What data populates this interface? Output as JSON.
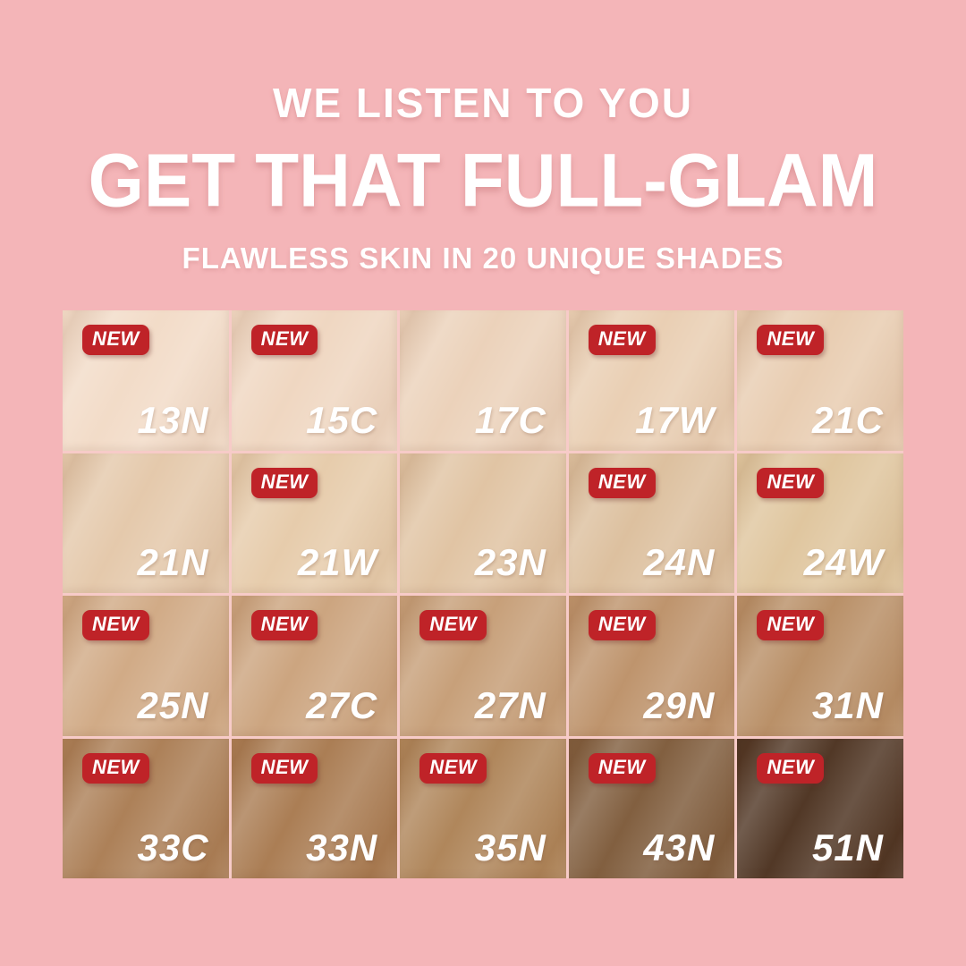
{
  "page": {
    "background_color": "#f4b5b8"
  },
  "header": {
    "line1": "WE LISTEN TO YOU",
    "line2": "GET THAT FULL-GLAM",
    "line3": "FLAWLESS SKIN IN 20 UNIQUE SHADES",
    "text_color": "#ffffff"
  },
  "badge": {
    "label": "NEW",
    "background_color": "#bf2328",
    "text_color": "#ffffff"
  },
  "grid": {
    "rows": 4,
    "cols": 5,
    "cells": [
      {
        "shade": "13N",
        "new": true,
        "color": "#f2dbc7"
      },
      {
        "shade": "15C",
        "new": true,
        "color": "#efd6c0"
      },
      {
        "shade": "17C",
        "new": false,
        "color": "#ebd1b9"
      },
      {
        "shade": "17W",
        "new": true,
        "color": "#e9ceb2"
      },
      {
        "shade": "21C",
        "new": true,
        "color": "#e8ccb0"
      },
      {
        "shade": "21N",
        "new": false,
        "color": "#e4c8aa"
      },
      {
        "shade": "21W",
        "new": true,
        "color": "#e6cbaa"
      },
      {
        "shade": "23N",
        "new": false,
        "color": "#e0c3a2"
      },
      {
        "shade": "24N",
        "new": true,
        "color": "#dcbf9d"
      },
      {
        "shade": "24W",
        "new": true,
        "color": "#dfc59d"
      },
      {
        "shade": "25N",
        "new": true,
        "color": "#d0a984"
      },
      {
        "shade": "27C",
        "new": true,
        "color": "#cba37d"
      },
      {
        "shade": "27N",
        "new": true,
        "color": "#c69e77"
      },
      {
        "shade": "29N",
        "new": true,
        "color": "#bd926a"
      },
      {
        "shade": "31N",
        "new": true,
        "color": "#b88e65"
      },
      {
        "shade": "33C",
        "new": true,
        "color": "#ab7e55"
      },
      {
        "shade": "33N",
        "new": true,
        "color": "#a97b51"
      },
      {
        "shade": "35N",
        "new": true,
        "color": "#ae8458"
      },
      {
        "shade": "43N",
        "new": true,
        "color": "#7f5c3c"
      },
      {
        "shade": "51N",
        "new": true,
        "color": "#4e3422"
      }
    ]
  }
}
